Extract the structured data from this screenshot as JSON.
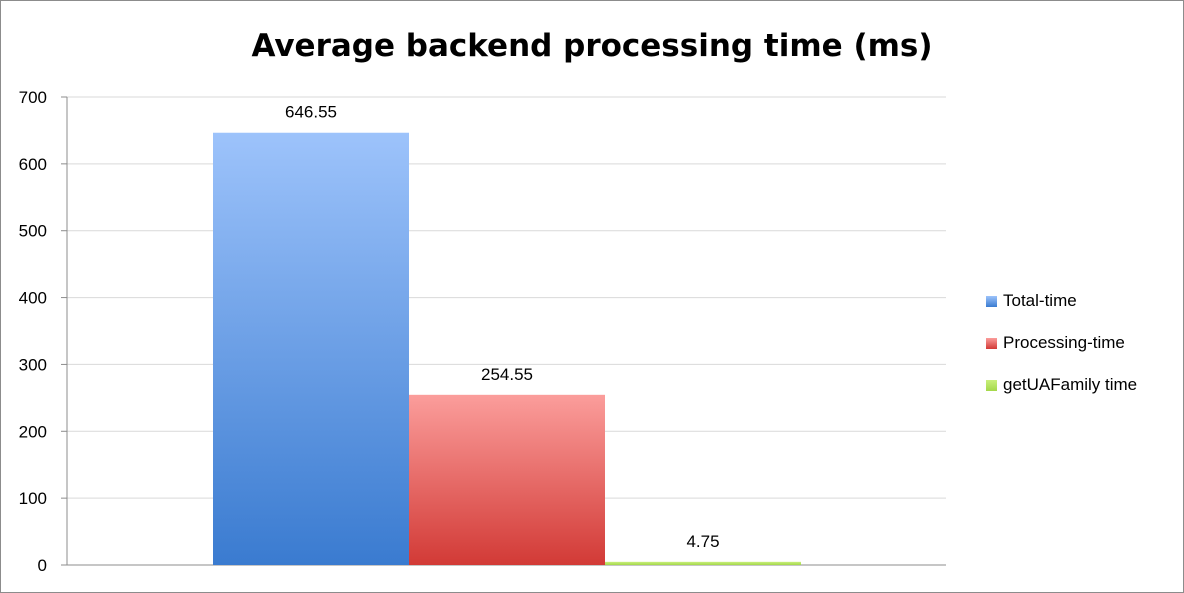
{
  "chart_data": {
    "type": "bar",
    "title": "Average backend processing time (ms)",
    "xlabel": "",
    "ylabel": "",
    "ylim": [
      0,
      700
    ],
    "yticks": [
      "0",
      "100",
      "200",
      "300",
      "400",
      "500",
      "600",
      "700"
    ],
    "grid": true,
    "legend_position": "right",
    "series": [
      {
        "name": "Total-time",
        "value": 646.55,
        "label": "646.55",
        "color_top": "#9dc3fb",
        "color_bottom": "#3a7bd0"
      },
      {
        "name": "Processing-time",
        "value": 254.55,
        "label": "254.55",
        "color_top": "#fb9d9b",
        "color_bottom": "#d23a36"
      },
      {
        "name": "getUAFamily time",
        "value": 4.75,
        "label": "4.75",
        "color_top": "#c9ef7c",
        "color_bottom": "#a4d84a"
      }
    ]
  }
}
